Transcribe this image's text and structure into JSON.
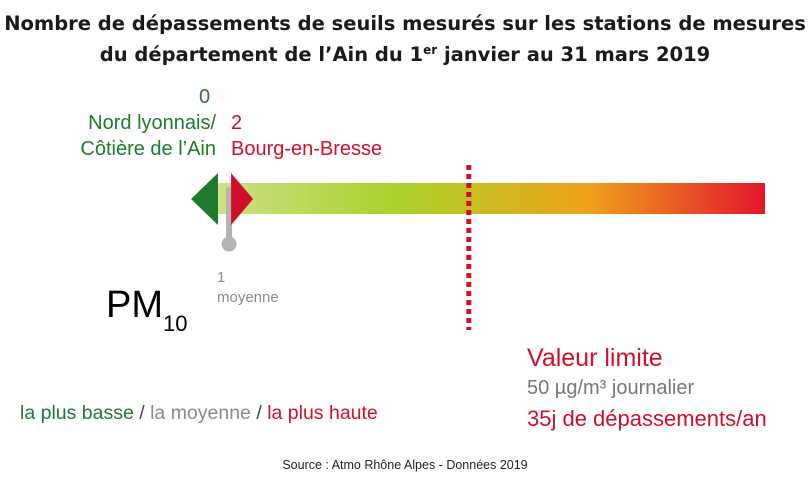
{
  "title": {
    "line1": "Nombre de dépassements de seuils mesurés sur les stations de mesures",
    "line2_pre": "du département de l’Ain du 1",
    "line2_sup": "er",
    "line2_post": " janvier au 31 mars 2019"
  },
  "colors": {
    "low": "#1e7b2e",
    "high": "#d0102a",
    "average": "#b3b3b3",
    "gradient": [
      "#cfe08a",
      "#a9d22a",
      "#f0a21b",
      "#e2162c"
    ]
  },
  "chart_data": {
    "type": "gauge",
    "pollutant": {
      "name": "PM",
      "subscript": "10"
    },
    "scale_min": 0,
    "scale_max": 77,
    "markers": [
      {
        "role": "lowest",
        "value": 0,
        "label_value": "0",
        "station_line1": "Nord lyonnais/",
        "station_line2": "Côtière de l’Ain"
      },
      {
        "role": "highest",
        "value": 2,
        "label_value": "2",
        "station": "Bourg-en-Bresse"
      },
      {
        "role": "average",
        "value": 1,
        "label_value": "1",
        "label_text": "moyenne"
      }
    ],
    "limit": {
      "value": 35,
      "title": "Valeur limite",
      "line2": "50 µg/m³ journalier",
      "line3": "35j de dépassements/an"
    }
  },
  "legend": {
    "low": "la plus basse",
    "sep1": " / ",
    "mid": "la moyenne",
    "sep2": " / ",
    "high": "la plus haute"
  },
  "source": "Source : Atmo Rhône Alpes - Données 2019"
}
